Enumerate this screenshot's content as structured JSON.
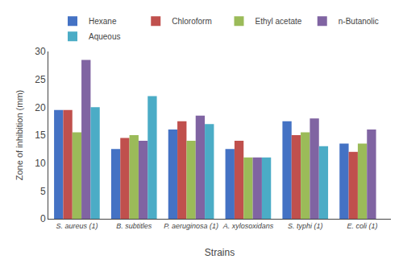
{
  "chart_data": {
    "type": "bar",
    "xlabel": "Strains",
    "ylabel": "Zone of inhibition (mm)",
    "categories": [
      "S. aureus (1)",
      "B. subtitles",
      "P. aeruginosa (1)",
      "A. xylosoxidans",
      "S. typhi (1)",
      "E. coli (1)"
    ],
    "series": [
      {
        "name": "Hexane",
        "color": "#4472C4",
        "values": [
          19.5,
          12.5,
          16.0,
          12.5,
          17.5,
          13.5
        ]
      },
      {
        "name": "Chloroform",
        "color": "#C0504D",
        "values": [
          19.5,
          14.5,
          17.5,
          14.0,
          15.0,
          12.0
        ]
      },
      {
        "name": "Ethyl acetate",
        "color": "#9BBB59",
        "values": [
          15.5,
          15.0,
          14.0,
          11.0,
          15.5,
          13.5
        ]
      },
      {
        "name": "n-Butanolic",
        "color": "#8064A2",
        "values": [
          28.5,
          14.0,
          18.5,
          11.0,
          18.0,
          16.0
        ]
      },
      {
        "name": "Aqueous",
        "color": "#4BACC6",
        "values": [
          20.0,
          22.0,
          17.0,
          11.0,
          13.0,
          0.0
        ]
      }
    ],
    "ylim": [
      0,
      30
    ],
    "yticks": [
      0,
      5,
      10,
      15,
      20,
      25,
      30
    ],
    "grid": false,
    "legend": "top"
  }
}
